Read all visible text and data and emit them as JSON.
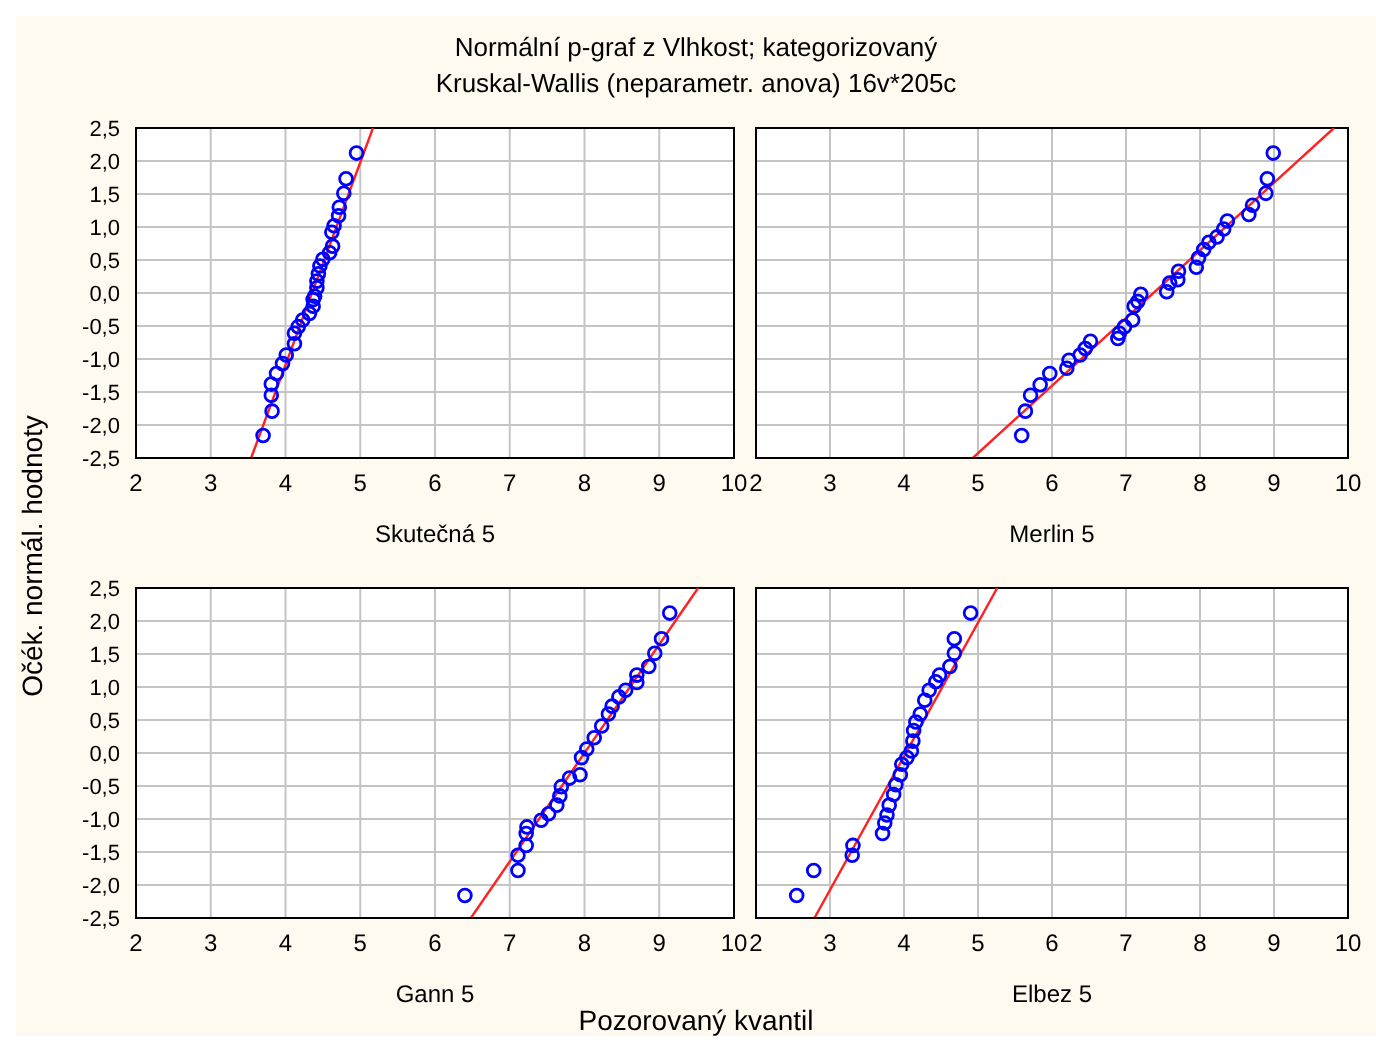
{
  "chart_data": [
    {
      "type": "scatter",
      "title": "Normální p-graf z Vlhkost; kategorizovaný",
      "subtitle": "Kruskal-Wallis (neparametr. anova) 16v*205c",
      "ylabel": "Očék. normál. hodnoty",
      "xlabel": "Skutečná 5",
      "xlim": [
        2,
        10
      ],
      "xticks": [
        2,
        3,
        4,
        5,
        6,
        7,
        8,
        9,
        10
      ],
      "ylim": [
        -2.5,
        2.5
      ],
      "yticks": [
        {
          "value": -2.5,
          "label": "-2,5"
        },
        {
          "value": -2,
          "label": "-2,0"
        },
        {
          "value": -1.5,
          "label": "-1,5"
        },
        {
          "value": -1,
          "label": "-1,0"
        },
        {
          "value": -0.5,
          "label": "-0,5"
        },
        {
          "value": 0,
          "label": "0,0"
        },
        {
          "value": 0.5,
          "label": "0,5"
        },
        {
          "value": 1,
          "label": "1,0"
        },
        {
          "value": 1.5,
          "label": "1,5"
        },
        {
          "value": 2,
          "label": "2,0"
        },
        {
          "value": 2.5,
          "label": "2,5"
        }
      ],
      "grid": true,
      "series": [
        {
          "type": "scatter",
          "marker": "circle",
          "color": "#0000ff",
          "x": [
            4.95,
            4.81,
            4.78,
            4.72,
            4.71,
            4.65,
            4.62,
            4.63,
            4.59,
            4.5,
            4.46,
            4.44,
            4.42,
            4.42,
            4.39,
            4.37,
            4.37,
            4.32,
            4.23,
            4.17,
            4.12,
            4.12,
            4.01,
            3.96,
            3.88,
            3.81,
            3.81,
            3.82,
            3.7
          ],
          "values": [
            2.12,
            1.73,
            1.51,
            1.3,
            1.17,
            1.02,
            0.92,
            0.71,
            0.61,
            0.51,
            0.41,
            0.29,
            0.18,
            0.08,
            -0.05,
            -0.1,
            -0.2,
            -0.31,
            -0.41,
            -0.51,
            -0.61,
            -0.77,
            -0.94,
            -1.07,
            -1.22,
            -1.38,
            -1.55,
            -1.79,
            -2.16
          ]
        },
        {
          "type": "line",
          "color": "#ff2020",
          "line_style": "solid",
          "x": [
            3.54,
            5.17
          ],
          "values": [
            -2.5,
            2.5
          ]
        }
      ]
    },
    {
      "type": "scatter",
      "xlabel": "Merlin 5",
      "xlim": [
        2,
        10
      ],
      "xticks": [
        2,
        3,
        4,
        5,
        6,
        7,
        8,
        9,
        10
      ],
      "ylim": [
        -2.5,
        2.5
      ],
      "yticks": [
        -2.5,
        -2,
        -1.5,
        -1,
        -0.5,
        0,
        0.5,
        1,
        1.5,
        2,
        2.5
      ],
      "grid": true,
      "tick_labels": "x",
      "series": [
        {
          "type": "scatter",
          "marker": "circle",
          "color": "#0000ff",
          "x": [
            8.99,
            8.91,
            8.89,
            8.71,
            8.66,
            8.37,
            8.32,
            8.23,
            8.12,
            8.05,
            7.98,
            7.95,
            7.71,
            7.7,
            7.59,
            7.55,
            7.2,
            7.16,
            7.11,
            7.09,
            6.98,
            6.91,
            6.89,
            6.52,
            6.45,
            6.38,
            6.23,
            6.2,
            5.97,
            5.84,
            5.71,
            5.64,
            5.59
          ],
          "values": [
            2.12,
            1.73,
            1.51,
            1.33,
            1.19,
            1.09,
            0.97,
            0.85,
            0.77,
            0.66,
            0.53,
            0.39,
            0.33,
            0.2,
            0.15,
            0.02,
            -0.02,
            -0.13,
            -0.2,
            -0.41,
            -0.51,
            -0.61,
            -0.69,
            -0.73,
            -0.84,
            -0.94,
            -1.02,
            -1.14,
            -1.22,
            -1.39,
            -1.55,
            -1.79,
            -2.16
          ]
        },
        {
          "type": "line",
          "color": "#ff2020",
          "line_style": "solid",
          "x": [
            4.93,
            9.81
          ],
          "values": [
            -2.5,
            2.5
          ]
        }
      ]
    },
    {
      "type": "scatter",
      "xlabel": "Gann 5",
      "annotations": [
        "Pozorovaný kvantil"
      ],
      "xlim": [
        2,
        10
      ],
      "xticks": [
        2,
        3,
        4,
        5,
        6,
        7,
        8,
        9,
        10
      ],
      "ylim": [
        -2.5,
        2.5
      ],
      "yticks": [
        {
          "value": -2.5,
          "label": "-2,5"
        },
        {
          "value": -2,
          "label": "-2,0"
        },
        {
          "value": -1.5,
          "label": "-1,5"
        },
        {
          "value": -1,
          "label": "-1,0"
        },
        {
          "value": -0.5,
          "label": "-0,5"
        },
        {
          "value": 0,
          "label": "0,0"
        },
        {
          "value": 0.5,
          "label": "0,5"
        },
        {
          "value": 1,
          "label": "1,0"
        },
        {
          "value": 1.5,
          "label": "1,5"
        },
        {
          "value": 2,
          "label": "2,0"
        },
        {
          "value": 2.5,
          "label": "2,5"
        }
      ],
      "grid": true,
      "series": [
        {
          "type": "scatter",
          "marker": "circle",
          "color": "#0000ff",
          "x": [
            9.14,
            9.03,
            8.94,
            8.86,
            8.7,
            8.7,
            8.55,
            8.46,
            8.37,
            8.32,
            8.23,
            8.13,
            8.03,
            7.96,
            7.94,
            7.8,
            7.69,
            7.67,
            7.63,
            7.52,
            7.42,
            7.23,
            7.22,
            7.22,
            7.11,
            7.11,
            6.4
          ],
          "values": [
            2.12,
            1.73,
            1.51,
            1.31,
            1.18,
            1.07,
            0.95,
            0.85,
            0.71,
            0.59,
            0.41,
            0.23,
            0.06,
            -0.07,
            -0.33,
            -0.38,
            -0.51,
            -0.65,
            -0.79,
            -0.92,
            -1.02,
            -1.12,
            -1.22,
            -1.4,
            -1.55,
            -1.78,
            -2.16
          ]
        },
        {
          "type": "line",
          "color": "#ff2020",
          "line_style": "solid",
          "x": [
            6.48,
            9.52
          ],
          "values": [
            -2.5,
            2.5
          ]
        }
      ]
    },
    {
      "type": "scatter",
      "xlabel": "Elbez 5",
      "xlim": [
        2,
        10
      ],
      "xticks": [
        2,
        3,
        4,
        5,
        6,
        7,
        8,
        9,
        10
      ],
      "ylim": [
        -2.5,
        2.5
      ],
      "yticks": [
        -2.5,
        -2,
        -1.5,
        -1,
        -0.5,
        0,
        0.5,
        1,
        1.5,
        2,
        2.5
      ],
      "grid": true,
      "tick_labels": "x",
      "series": [
        {
          "type": "scatter",
          "marker": "circle",
          "color": "#0000ff",
          "x": [
            4.9,
            4.68,
            4.68,
            4.62,
            4.48,
            4.43,
            4.34,
            4.28,
            4.22,
            4.16,
            4.13,
            4.12,
            4.1,
            4.04,
            3.97,
            3.95,
            3.89,
            3.86,
            3.8,
            3.77,
            3.74,
            3.71,
            3.31,
            3.3,
            2.78,
            2.55
          ],
          "values": [
            2.12,
            1.73,
            1.51,
            1.31,
            1.18,
            1.08,
            0.95,
            0.8,
            0.59,
            0.47,
            0.34,
            0.18,
            0.03,
            -0.07,
            -0.17,
            -0.33,
            -0.48,
            -0.63,
            -0.79,
            -0.94,
            -1.06,
            -1.22,
            -1.4,
            -1.55,
            -1.78,
            -2.16
          ]
        },
        {
          "type": "line",
          "color": "#ff2020",
          "line_style": "solid",
          "x": [
            2.79,
            5.26
          ],
          "values": [
            -2.5,
            2.5
          ]
        }
      ]
    }
  ]
}
